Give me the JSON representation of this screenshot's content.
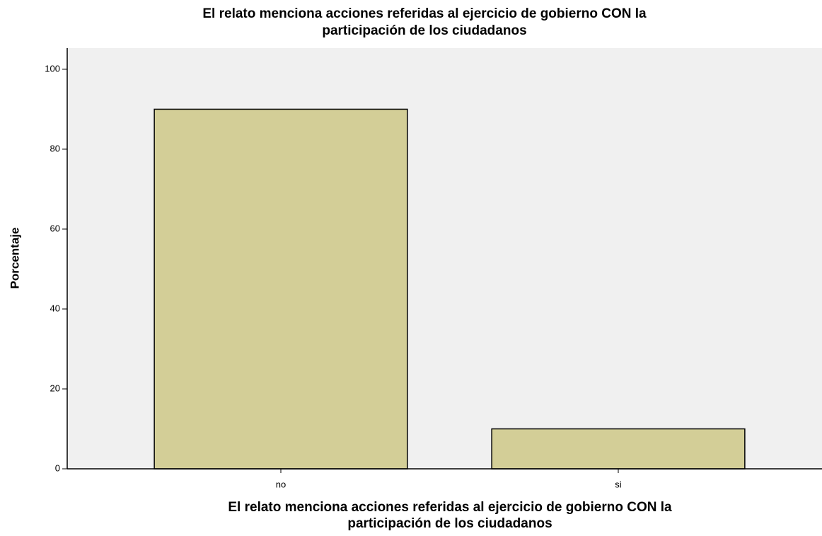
{
  "chart_data": {
    "type": "bar",
    "title": [
      "El relato menciona acciones referidas al ejercicio de gobierno CON la",
      "participación de los ciudadanos"
    ],
    "x_label": [
      "El relato menciona acciones referidas al ejercicio de gobierno CON la",
      "participación de los ciudadanos"
    ],
    "y_label": "Porcentaje",
    "categories": [
      "no",
      "si"
    ],
    "values": [
      90,
      10
    ],
    "color": "#d3ce97",
    "ylim": [
      0,
      105.3
    ],
    "yticks": [
      0,
      20,
      40,
      60,
      80,
      100
    ],
    "grid": false
  }
}
